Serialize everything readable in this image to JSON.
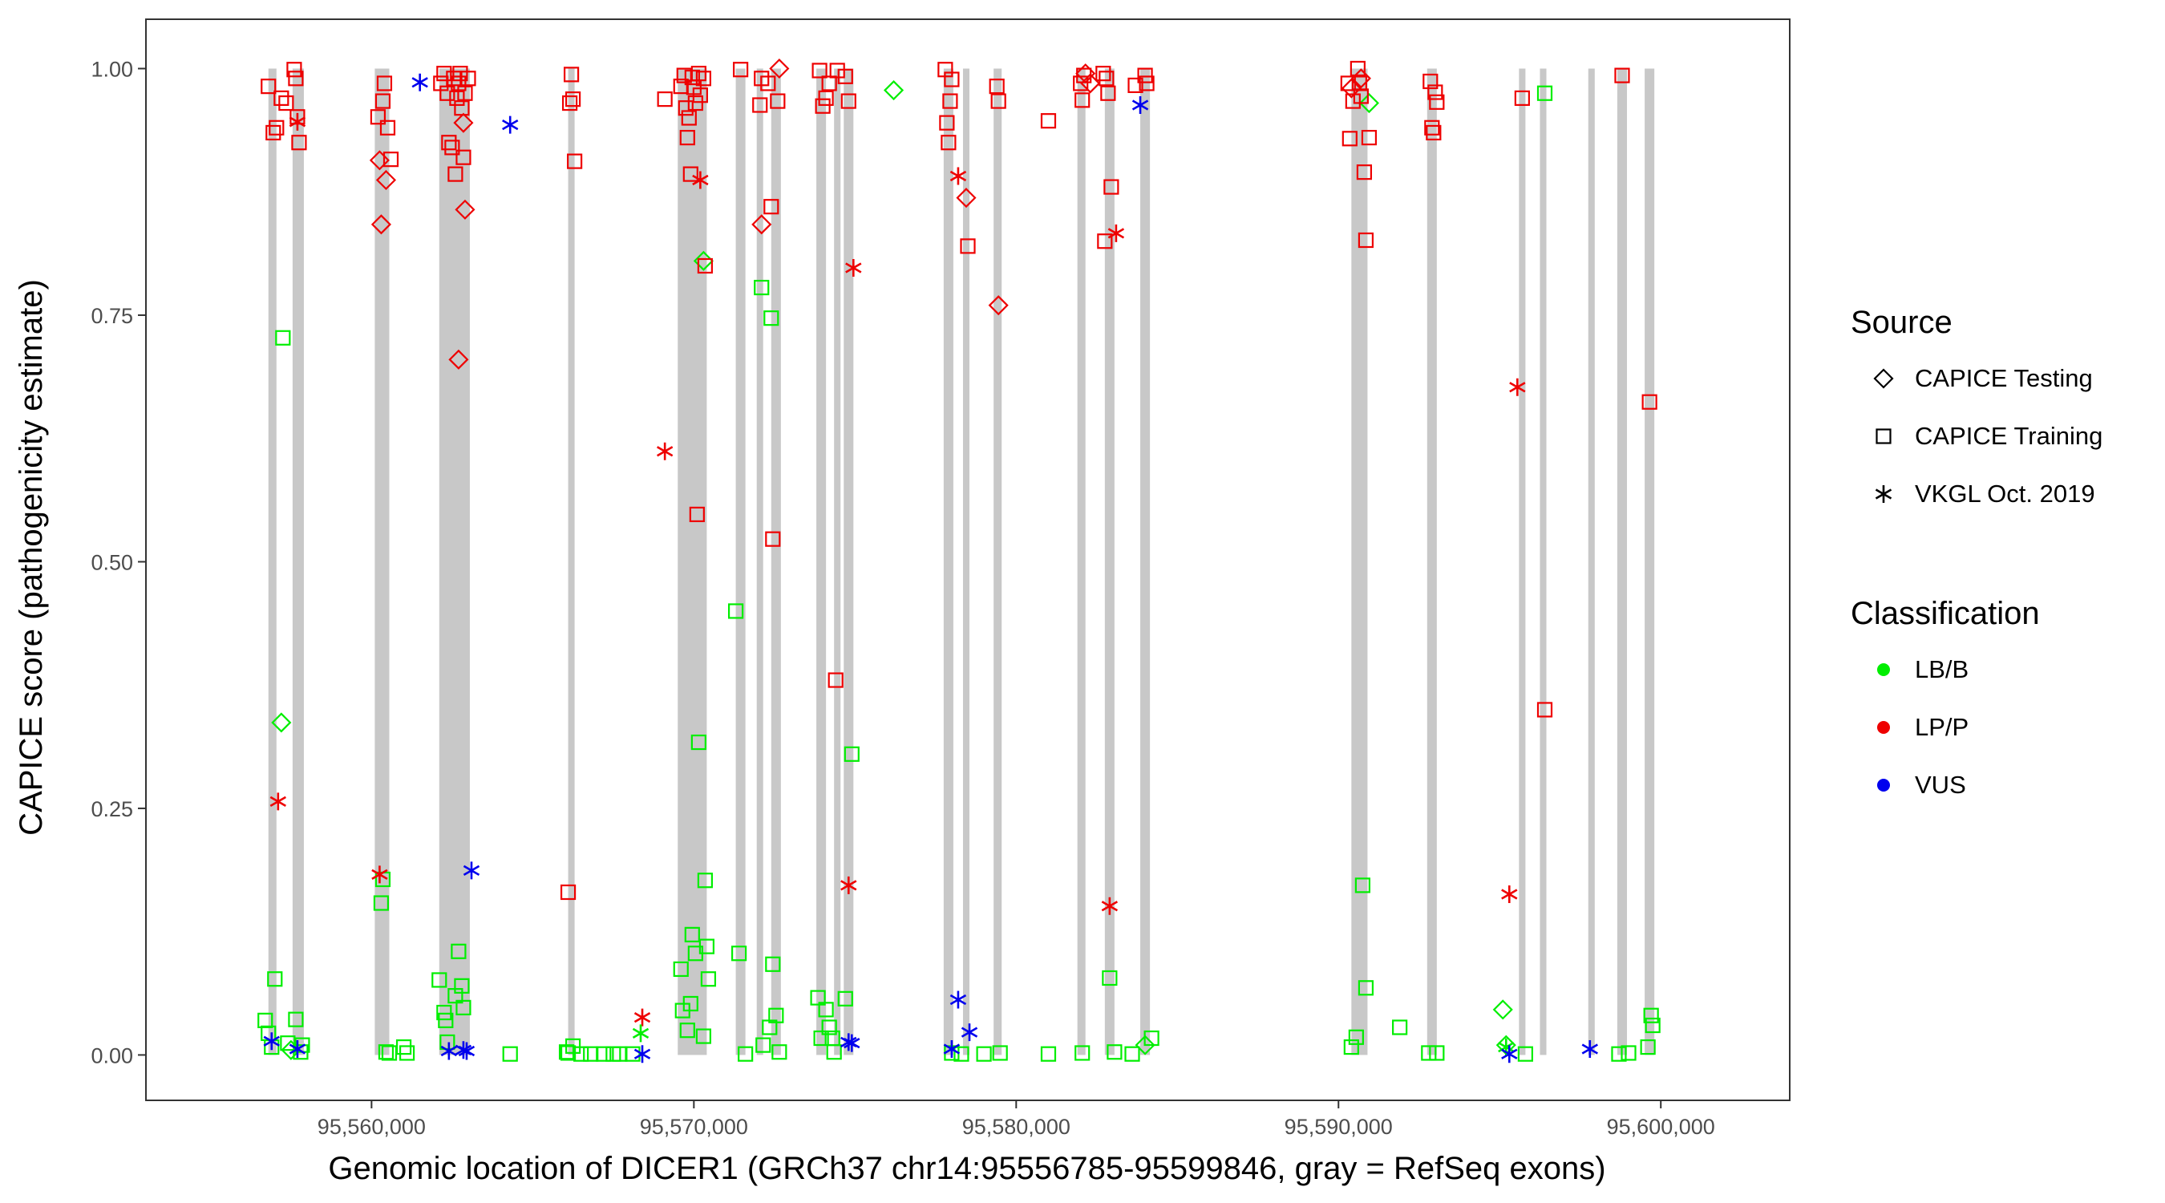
{
  "chart_data": {
    "type": "scatter",
    "title": "",
    "xlabel": "Genomic location of DICER1 (GRCh37 chr14:95556785-95599846, gray = RefSeq exons)",
    "ylabel": "CAPICE score (pathogenicity estimate)",
    "xlim": [
      95553000,
      95604000
    ],
    "ylim": [
      -0.046,
      1.05
    ],
    "x_ticks": [
      95560000,
      95570000,
      95580000,
      95590000,
      95600000
    ],
    "x_tick_labels": [
      "95,560,000",
      "95,570,000",
      "95,580,000",
      "95,590,000",
      "95,600,000"
    ],
    "y_ticks": [
      0,
      0.25,
      0.5,
      0.75,
      1.0
    ],
    "y_tick_labels": [
      "0.00",
      "0.25",
      "0.50",
      "0.75",
      "1.00"
    ],
    "grid": false,
    "exons": [
      [
        95556800,
        95557050
      ],
      [
        95557550,
        95557900
      ],
      [
        95560100,
        95560550
      ],
      [
        95562100,
        95563050
      ],
      [
        95566100,
        95566300
      ],
      [
        95569500,
        95570400
      ],
      [
        95571300,
        95571600
      ],
      [
        95571950,
        95572150
      ],
      [
        95572400,
        95572700
      ],
      [
        95573800,
        95574100
      ],
      [
        95574350,
        95574550
      ],
      [
        95574650,
        95574950
      ],
      [
        95577750,
        95578050
      ],
      [
        95578350,
        95578550
      ],
      [
        95579300,
        95579550
      ],
      [
        95581900,
        95582150
      ],
      [
        95582750,
        95583050
      ],
      [
        95583850,
        95584150
      ],
      [
        95590400,
        95590900
      ],
      [
        95592750,
        95593050
      ],
      [
        95595600,
        95595800
      ],
      [
        95596250,
        95596450
      ],
      [
        95597750,
        95597950
      ],
      [
        95598650,
        95598950
      ],
      [
        95599500,
        95599800
      ]
    ],
    "legend": {
      "placement": "right",
      "source_title": "Source",
      "source_entries": [
        {
          "label": "CAPICE Testing",
          "shape": "diamond"
        },
        {
          "label": "CAPICE Training",
          "shape": "square"
        },
        {
          "label": "VKGL Oct. 2019",
          "shape": "asterisk"
        }
      ],
      "class_title": "Classification",
      "class_entries": [
        {
          "label": "LB/B",
          "color": "#00ee00"
        },
        {
          "label": "LP/P",
          "color": "#ee0000"
        },
        {
          "label": "VUS",
          "color": "#0000ee"
        }
      ]
    },
    "series": [
      {
        "name": "CAPICE Testing",
        "shape": "diamond",
        "class": "LP/P",
        "points": [
          [
            95560250,
            0.907
          ],
          [
            95560300,
            0.842
          ],
          [
            95560450,
            0.887
          ],
          [
            95562700,
            0.705
          ],
          [
            95562850,
            0.945
          ],
          [
            95562900,
            0.857
          ],
          [
            95572100,
            0.842
          ],
          [
            95572650,
            1.0
          ],
          [
            95578450,
            0.869
          ],
          [
            95579450,
            0.76
          ],
          [
            95582150,
            0.995
          ],
          [
            95582300,
            0.985
          ],
          [
            95590400,
            0.98
          ],
          [
            95590700,
            0.99
          ]
        ]
      },
      {
        "name": "CAPICE Testing",
        "shape": "diamond",
        "class": "LB/B",
        "points": [
          [
            95557200,
            0.337
          ],
          [
            95570300,
            0.805
          ],
          [
            95576200,
            0.978
          ],
          [
            95590950,
            0.965
          ],
          [
            95595100,
            0.046
          ],
          [
            95595200,
            0.01
          ],
          [
            95584000,
            0.01
          ],
          [
            95557500,
            0.005
          ]
        ]
      },
      {
        "name": "CAPICE Training",
        "shape": "square",
        "class": "LP/P",
        "points": [
          [
            95556800,
            0.982
          ],
          [
            95556950,
            0.935
          ],
          [
            95557050,
            0.94
          ],
          [
            95557200,
            0.97
          ],
          [
            95557350,
            0.965
          ],
          [
            95557600,
            0.999
          ],
          [
            95557650,
            0.99
          ],
          [
            95557700,
            0.951
          ],
          [
            95557750,
            0.925
          ],
          [
            95560200,
            0.951
          ],
          [
            95560350,
            0.967
          ],
          [
            95560400,
            0.985
          ],
          [
            95560500,
            0.94
          ],
          [
            95560600,
            0.908
          ],
          [
            95562150,
            0.985
          ],
          [
            95562250,
            0.995
          ],
          [
            95562350,
            0.975
          ],
          [
            95562400,
            0.925
          ],
          [
            95562500,
            0.92
          ],
          [
            95562550,
            0.99
          ],
          [
            95562600,
            0.893
          ],
          [
            95562650,
            0.97
          ],
          [
            95562700,
            0.985
          ],
          [
            95562750,
            0.995
          ],
          [
            95562800,
            0.96
          ],
          [
            95562850,
            0.91
          ],
          [
            95562900,
            0.975
          ],
          [
            95563000,
            0.99
          ],
          [
            95566100,
            0.165
          ],
          [
            95566150,
            0.965
          ],
          [
            95566200,
            0.994
          ],
          [
            95566250,
            0.969
          ],
          [
            95566300,
            0.906
          ],
          [
            95569100,
            0.969
          ],
          [
            95569600,
            0.982
          ],
          [
            95569700,
            0.993
          ],
          [
            95569750,
            0.96
          ],
          [
            95569800,
            0.93
          ],
          [
            95569850,
            0.95
          ],
          [
            95569900,
            0.893
          ],
          [
            95569950,
            0.991
          ],
          [
            95570000,
            0.981
          ],
          [
            95570050,
            0.965
          ],
          [
            95570100,
            0.548
          ],
          [
            95570150,
            0.995
          ],
          [
            95570200,
            0.973
          ],
          [
            95570300,
            0.99
          ],
          [
            95570350,
            0.8
          ],
          [
            95571450,
            0.999
          ],
          [
            95572050,
            0.963
          ],
          [
            95572100,
            0.99
          ],
          [
            95572300,
            0.985
          ],
          [
            95572400,
            0.86
          ],
          [
            95572450,
            0.523
          ],
          [
            95572600,
            0.967
          ],
          [
            95573900,
            0.998
          ],
          [
            95574000,
            0.962
          ],
          [
            95574100,
            0.97
          ],
          [
            95574200,
            0.985
          ],
          [
            95574400,
            0.38
          ],
          [
            95574450,
            0.998
          ],
          [
            95574700,
            0.992
          ],
          [
            95574800,
            0.967
          ],
          [
            95577800,
            0.999
          ],
          [
            95577850,
            0.945
          ],
          [
            95577900,
            0.925
          ],
          [
            95577950,
            0.967
          ],
          [
            95578000,
            0.989
          ],
          [
            95578500,
            0.82
          ],
          [
            95579400,
            0.982
          ],
          [
            95579450,
            0.967
          ],
          [
            95581000,
            0.947
          ],
          [
            95582000,
            0.985
          ],
          [
            95582050,
            0.968
          ],
          [
            95582100,
            0.993
          ],
          [
            95582700,
            0.995
          ],
          [
            95582750,
            0.825
          ],
          [
            95582800,
            0.99
          ],
          [
            95582850,
            0.975
          ],
          [
            95582950,
            0.88
          ],
          [
            95583700,
            0.983
          ],
          [
            95584000,
            0.993
          ],
          [
            95584050,
            0.985
          ],
          [
            95590300,
            0.985
          ],
          [
            95590350,
            0.929
          ],
          [
            95590450,
            0.967
          ],
          [
            95590600,
            1.0
          ],
          [
            95590650,
            0.985
          ],
          [
            95590700,
            0.972
          ],
          [
            95590800,
            0.895
          ],
          [
            95590850,
            0.826
          ],
          [
            95590950,
            0.93
          ],
          [
            95592850,
            0.987
          ],
          [
            95592900,
            0.94
          ],
          [
            95592950,
            0.935
          ],
          [
            95593000,
            0.976
          ],
          [
            95593050,
            0.966
          ],
          [
            95595700,
            0.97
          ],
          [
            95596400,
            0.35
          ],
          [
            95598800,
            0.993
          ],
          [
            95599650,
            0.662
          ]
        ]
      },
      {
        "name": "CAPICE Training",
        "shape": "square",
        "class": "LB/B",
        "points": [
          [
            95556700,
            0.035
          ],
          [
            95556800,
            0.022
          ],
          [
            95556900,
            0.008
          ],
          [
            95557000,
            0.077
          ],
          [
            95557250,
            0.727
          ],
          [
            95557400,
            0.012
          ],
          [
            95557650,
            0.036
          ],
          [
            95557800,
            0.003
          ],
          [
            95557850,
            0.01
          ],
          [
            95560300,
            0.154
          ],
          [
            95560350,
            0.178
          ],
          [
            95560450,
            0.003
          ],
          [
            95560550,
            0.002
          ],
          [
            95561000,
            0.008
          ],
          [
            95561100,
            0.002
          ],
          [
            95562100,
            0.076
          ],
          [
            95562250,
            0.043
          ],
          [
            95562300,
            0.035
          ],
          [
            95562350,
            0.013
          ],
          [
            95562600,
            0.06
          ],
          [
            95562700,
            0.105
          ],
          [
            95562800,
            0.07
          ],
          [
            95562850,
            0.048
          ],
          [
            95564300,
            0.001
          ],
          [
            95566050,
            0.003
          ],
          [
            95566100,
            0.002
          ],
          [
            95566250,
            0.009
          ],
          [
            95566500,
            0.001
          ],
          [
            95566800,
            0.001
          ],
          [
            95567200,
            0.001
          ],
          [
            95567500,
            0.001
          ],
          [
            95567700,
            0.001
          ],
          [
            95568100,
            0.001
          ],
          [
            95569600,
            0.087
          ],
          [
            95569650,
            0.045
          ],
          [
            95569800,
            0.025
          ],
          [
            95569900,
            0.052
          ],
          [
            95569950,
            0.122
          ],
          [
            95570050,
            0.103
          ],
          [
            95570150,
            0.317
          ],
          [
            95570300,
            0.019
          ],
          [
            95570350,
            0.177
          ],
          [
            95570400,
            0.11
          ],
          [
            95570450,
            0.077
          ],
          [
            95571300,
            0.45
          ],
          [
            95571400,
            0.103
          ],
          [
            95571600,
            0.001
          ],
          [
            95572100,
            0.778
          ],
          [
            95572150,
            0.01
          ],
          [
            95572350,
            0.028
          ],
          [
            95572400,
            0.747
          ],
          [
            95572450,
            0.092
          ],
          [
            95572550,
            0.04
          ],
          [
            95572650,
            0.003
          ],
          [
            95573850,
            0.058
          ],
          [
            95573950,
            0.017
          ],
          [
            95574100,
            0.046
          ],
          [
            95574200,
            0.028
          ],
          [
            95574300,
            0.017
          ],
          [
            95574350,
            0.003
          ],
          [
            95574700,
            0.057
          ],
          [
            95574900,
            0.305
          ],
          [
            95578000,
            0.002
          ],
          [
            95578300,
            0.001
          ],
          [
            95579000,
            0.001
          ],
          [
            95579500,
            0.002
          ],
          [
            95581000,
            0.001
          ],
          [
            95582050,
            0.002
          ],
          [
            95582900,
            0.078
          ],
          [
            95583050,
            0.003
          ],
          [
            95583600,
            0.001
          ],
          [
            95584200,
            0.017
          ],
          [
            95590400,
            0.008
          ],
          [
            95590550,
            0.018
          ],
          [
            95590750,
            0.172
          ],
          [
            95590850,
            0.068
          ],
          [
            95591900,
            0.028
          ],
          [
            95592800,
            0.002
          ],
          [
            95593050,
            0.002
          ],
          [
            95595800,
            0.001
          ],
          [
            95596400,
            0.975
          ],
          [
            95598700,
            0.001
          ],
          [
            95599000,
            0.002
          ],
          [
            95599700,
            0.04
          ],
          [
            95599750,
            0.03
          ],
          [
            95599600,
            0.008
          ]
        ]
      },
      {
        "name": "VKGL Oct. 2019",
        "shape": "asterisk",
        "class": "LP/P",
        "points": [
          [
            95557100,
            0.257
          ],
          [
            95557700,
            0.946
          ],
          [
            95560250,
            0.183
          ],
          [
            95568400,
            0.038
          ],
          [
            95569100,
            0.612
          ],
          [
            95570200,
            0.887
          ],
          [
            95574800,
            0.172
          ],
          [
            95574950,
            0.798
          ],
          [
            95578200,
            0.891
          ],
          [
            95582900,
            0.151
          ],
          [
            95583100,
            0.833
          ],
          [
            95595300,
            0.163
          ],
          [
            95595550,
            0.677
          ]
        ]
      },
      {
        "name": "VKGL Oct. 2019",
        "shape": "asterisk",
        "class": "LB/B",
        "points": [
          [
            95568350,
            0.022
          ],
          [
            95595200,
            0.008
          ]
        ]
      },
      {
        "name": "VKGL Oct. 2019",
        "shape": "asterisk",
        "class": "VUS",
        "points": [
          [
            95556900,
            0.014
          ],
          [
            95557700,
            0.006
          ],
          [
            95561500,
            0.986
          ],
          [
            95562400,
            0.004
          ],
          [
            95562850,
            0.005
          ],
          [
            95562950,
            0.004
          ],
          [
            95563100,
            0.187
          ],
          [
            95564300,
            0.943
          ],
          [
            95568400,
            0.001
          ],
          [
            95574800,
            0.013
          ],
          [
            95574900,
            0.012
          ],
          [
            95578000,
            0.006
          ],
          [
            95578200,
            0.056
          ],
          [
            95578550,
            0.023
          ],
          [
            95583850,
            0.963
          ],
          [
            95595300,
            0.001
          ],
          [
            95597800,
            0.006
          ]
        ]
      }
    ]
  }
}
